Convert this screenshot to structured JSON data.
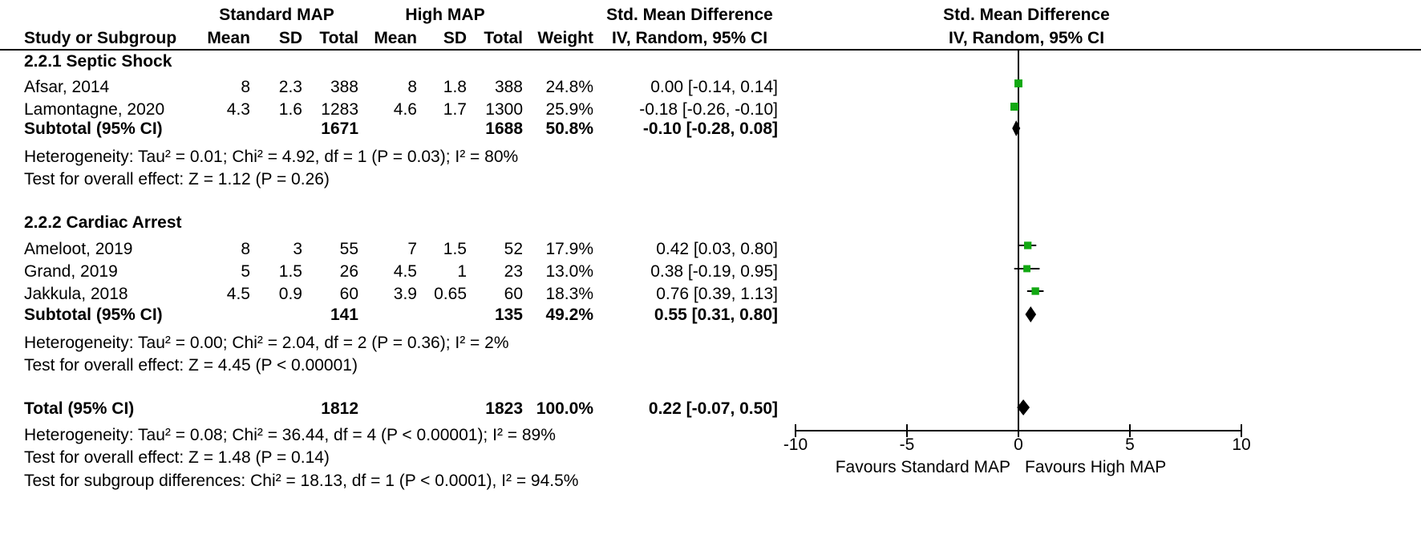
{
  "header": {
    "group1": "Standard MAP",
    "group2": "High MAP",
    "effect_title": "Std. Mean Difference",
    "effect_subtitle": "IV, Random, 95% CI",
    "plot_title": "Std. Mean Difference",
    "plot_subtitle": "IV, Random, 95% CI",
    "col_study": "Study or Subgroup",
    "col_mean1": "Mean",
    "col_sd1": "SD",
    "col_total1": "Total",
    "col_mean2": "Mean",
    "col_sd2": "SD",
    "col_total2": "Total",
    "col_weight": "Weight"
  },
  "subgroups": [
    {
      "title": "2.2.1 Septic Shock",
      "studies": [
        {
          "name": "Afsar, 2014",
          "mean1": "8",
          "sd1": "2.3",
          "total1": "388",
          "mean2": "8",
          "sd2": "1.8",
          "total2": "388",
          "weight": "24.8%",
          "ci": "0.00 [-0.14, 0.14]"
        },
        {
          "name": "Lamontagne, 2020",
          "mean1": "4.3",
          "sd1": "1.6",
          "total1": "1283",
          "mean2": "4.6",
          "sd2": "1.7",
          "total2": "1300",
          "weight": "25.9%",
          "ci": "-0.18 [-0.26, -0.10]"
        }
      ],
      "subtotal": {
        "label": "Subtotal (95% CI)",
        "total1": "1671",
        "total2": "1688",
        "weight": "50.8%",
        "ci": "-0.10 [-0.28, 0.08]"
      },
      "heterogeneity": "Heterogeneity: Tau² = 0.01; Chi² = 4.92, df = 1 (P = 0.03); I² = 80%",
      "overall": "Test for overall effect: Z = 1.12 (P = 0.26)"
    },
    {
      "title": "2.2.2 Cardiac Arrest",
      "studies": [
        {
          "name": "Ameloot, 2019",
          "mean1": "8",
          "sd1": "3",
          "total1": "55",
          "mean2": "7",
          "sd2": "1.5",
          "total2": "52",
          "weight": "17.9%",
          "ci": "0.42 [0.03, 0.80]"
        },
        {
          "name": "Grand, 2019",
          "mean1": "5",
          "sd1": "1.5",
          "total1": "26",
          "mean2": "4.5",
          "sd2": "1",
          "total2": "23",
          "weight": "13.0%",
          "ci": "0.38 [-0.19, 0.95]"
        },
        {
          "name": "Jakkula, 2018",
          "mean1": "4.5",
          "sd1": "0.9",
          "total1": "60",
          "mean2": "3.9",
          "sd2": "0.65",
          "total2": "60",
          "weight": "18.3%",
          "ci": "0.76 [0.39, 1.13]"
        }
      ],
      "subtotal": {
        "label": "Subtotal (95% CI)",
        "total1": "141",
        "total2": "135",
        "weight": "49.2%",
        "ci": "0.55 [0.31, 0.80]"
      },
      "heterogeneity": "Heterogeneity: Tau² = 0.00; Chi² = 2.04, df = 2 (P = 0.36); I² = 2%",
      "overall": "Test for overall effect: Z = 4.45 (P < 0.00001)"
    }
  ],
  "total": {
    "label": "Total (95% CI)",
    "total1": "1812",
    "total2": "1823",
    "weight": "100.0%",
    "ci": "0.22 [-0.07, 0.50]",
    "heterogeneity": "Heterogeneity: Tau² = 0.08; Chi² = 36.44, df = 4 (P < 0.00001); I² = 89%",
    "overall": "Test for overall effect: Z = 1.48 (P = 0.14)",
    "subgroup_diff": "Test for subgroup differences: Chi² = 18.13, df = 1 (P < 0.0001), I² = 94.5%"
  },
  "axis": {
    "favours_left": "Favours Standard MAP",
    "favours_right": "Favours High MAP"
  },
  "chart_data": {
    "type": "forest",
    "xlim": [
      -10,
      10
    ],
    "ticks": [
      -10,
      -5,
      0,
      5,
      10
    ],
    "tick_labels": [
      "-10",
      "-5",
      "0",
      "5",
      "10"
    ],
    "marker_color": "#12a812",
    "studies": [
      {
        "name": "Afsar, 2014",
        "estimate": 0.0,
        "lower": -0.14,
        "upper": 0.14,
        "weight": 24.8
      },
      {
        "name": "Lamontagne, 2020",
        "estimate": -0.18,
        "lower": -0.26,
        "upper": -0.1,
        "weight": 25.9
      },
      {
        "name": "Ameloot, 2019",
        "estimate": 0.42,
        "lower": 0.03,
        "upper": 0.8,
        "weight": 17.9
      },
      {
        "name": "Grand, 2019",
        "estimate": 0.38,
        "lower": -0.19,
        "upper": 0.95,
        "weight": 13.0
      },
      {
        "name": "Jakkula, 2018",
        "estimate": 0.76,
        "lower": 0.39,
        "upper": 1.13,
        "weight": 18.3
      }
    ],
    "summaries": [
      {
        "name": "Subtotal (95% CI)",
        "estimate": -0.1,
        "lower": -0.28,
        "upper": 0.08
      },
      {
        "name": "Subtotal (95% CI)",
        "estimate": 0.55,
        "lower": 0.31,
        "upper": 0.8
      },
      {
        "name": "Total (95% CI)",
        "estimate": 0.22,
        "lower": -0.07,
        "upper": 0.5
      }
    ]
  }
}
